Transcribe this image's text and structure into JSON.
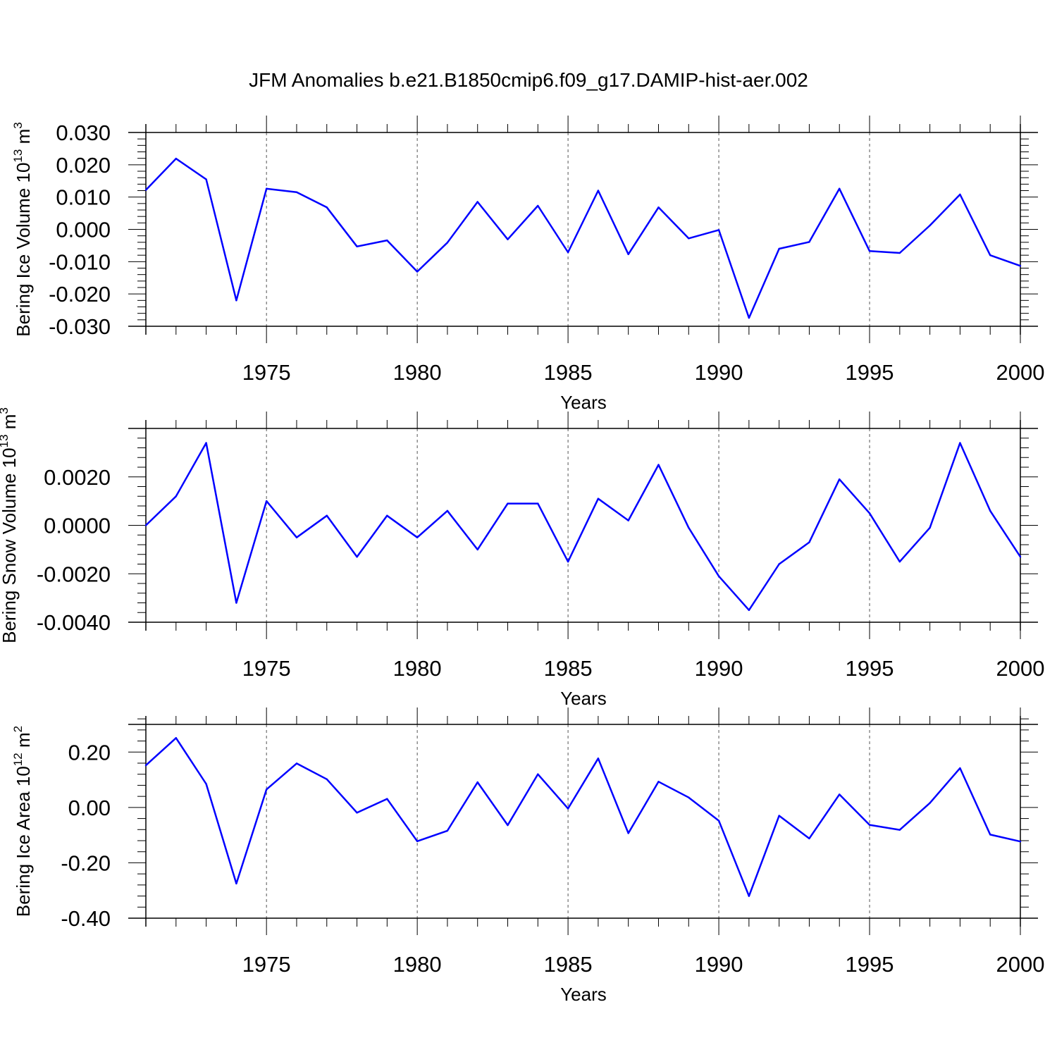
{
  "title": "JFM Anomalies b.e21.B1850cmip6.f09_g17.DAMIP-hist-aer.002",
  "chart_data": [
    {
      "type": "line",
      "title": "",
      "xlabel": "Years",
      "ylabel": {
        "text": "Bering Ice Volume 10",
        "exp": "13",
        "unit": " m",
        "unit_exp": "3"
      },
      "xlim": [
        1971,
        2000
      ],
      "ylim": [
        -0.03,
        0.03
      ],
      "x_ticks": [
        1975,
        1980,
        1985,
        1990,
        1995,
        2000
      ],
      "x_tick_labels": [
        "1975",
        "1980",
        "1985",
        "1990",
        "1995",
        "2000"
      ],
      "y_ticks": [
        -0.03,
        -0.02,
        -0.01,
        0.0,
        0.01,
        0.02,
        0.03
      ],
      "y_tick_labels": [
        "-0.030",
        "-0.020",
        "-0.010",
        "0.000",
        "0.010",
        "0.020",
        "0.030"
      ],
      "grid": "vertical dashed at major x ticks",
      "line_color": "#0000ff",
      "x": [
        1971,
        1972,
        1973,
        1974,
        1975,
        1976,
        1977,
        1978,
        1979,
        1980,
        1981,
        1982,
        1983,
        1984,
        1985,
        1986,
        1987,
        1988,
        1989,
        1990,
        1991,
        1992,
        1993,
        1994,
        1995,
        1996,
        1997,
        1998,
        1999,
        2000
      ],
      "values": [
        0.0122,
        0.0219,
        0.0155,
        -0.022,
        0.0126,
        0.0115,
        0.0068,
        -0.0053,
        -0.0034,
        -0.0131,
        -0.0041,
        0.0085,
        -0.0031,
        0.0073,
        -0.0071,
        0.012,
        -0.0077,
        0.0068,
        -0.0028,
        -0.0002,
        -0.0274,
        -0.006,
        -0.0039,
        0.0126,
        -0.0067,
        -0.0073,
        0.0012,
        0.0108,
        -0.008,
        -0.0113
      ]
    },
    {
      "type": "line",
      "title": "",
      "xlabel": "Years",
      "ylabel": {
        "text": "Bering Snow Volume 10",
        "exp": "13",
        "unit": " m",
        "unit_exp": "3"
      },
      "xlim": [
        1971,
        2000
      ],
      "ylim": [
        -0.004,
        0.004
      ],
      "x_ticks": [
        1975,
        1980,
        1985,
        1990,
        1995,
        2000
      ],
      "x_tick_labels": [
        "1975",
        "1980",
        "1985",
        "1990",
        "1995",
        "2000"
      ],
      "y_ticks": [
        -0.004,
        -0.002,
        0.0,
        0.002
      ],
      "y_tick_labels": [
        "-0.0040",
        "-0.0020",
        "0.0000",
        "0.0020"
      ],
      "grid": "vertical dashed at major x ticks",
      "line_color": "#0000ff",
      "x": [
        1971,
        1972,
        1973,
        1974,
        1975,
        1976,
        1977,
        1978,
        1979,
        1980,
        1981,
        1982,
        1983,
        1984,
        1985,
        1986,
        1987,
        1988,
        1989,
        1990,
        1991,
        1992,
        1993,
        1994,
        1995,
        1996,
        1997,
        1998,
        1999,
        2000
      ],
      "values": [
        0.0,
        0.0012,
        0.0034,
        -0.0032,
        0.001,
        -0.0005,
        0.0004,
        -0.0013,
        0.0004,
        -0.0005,
        0.0006,
        -0.001,
        0.0009,
        0.0009,
        -0.0015,
        0.0011,
        0.0002,
        0.0025,
        -0.0001,
        -0.0021,
        -0.0035,
        -0.0016,
        -0.0007,
        0.0019,
        0.0005,
        -0.0015,
        -0.0001,
        0.0034,
        0.0006,
        -0.0013
      ]
    },
    {
      "type": "line",
      "title": "",
      "xlabel": "Years",
      "ylabel": {
        "text": "Bering Ice Area 10",
        "exp": "12",
        "unit": " m",
        "unit_exp": "2"
      },
      "xlim": [
        1971,
        2000
      ],
      "ylim": [
        -0.4,
        0.3
      ],
      "x_ticks": [
        1975,
        1980,
        1985,
        1990,
        1995,
        2000
      ],
      "x_tick_labels": [
        "1975",
        "1980",
        "1985",
        "1990",
        "1995",
        "2000"
      ],
      "y_ticks": [
        -0.4,
        -0.2,
        0.0,
        0.2
      ],
      "y_tick_labels": [
        "-0.40",
        "-0.20",
        "0.00",
        "0.20"
      ],
      "grid": "vertical dashed at major x ticks",
      "line_color": "#0000ff",
      "x": [
        1971,
        1972,
        1973,
        1974,
        1975,
        1976,
        1977,
        1978,
        1979,
        1980,
        1981,
        1982,
        1983,
        1984,
        1985,
        1986,
        1987,
        1988,
        1989,
        1990,
        1991,
        1992,
        1993,
        1994,
        1995,
        1996,
        1997,
        1998,
        1999,
        2000
      ],
      "values": [
        0.152,
        0.251,
        0.085,
        -0.275,
        0.065,
        0.159,
        0.102,
        -0.019,
        0.031,
        -0.122,
        -0.084,
        0.091,
        -0.064,
        0.12,
        -0.004,
        0.177,
        -0.093,
        0.093,
        0.036,
        -0.048,
        -0.32,
        -0.03,
        -0.112,
        0.047,
        -0.063,
        -0.081,
        0.016,
        0.142,
        -0.098,
        -0.123
      ]
    }
  ]
}
